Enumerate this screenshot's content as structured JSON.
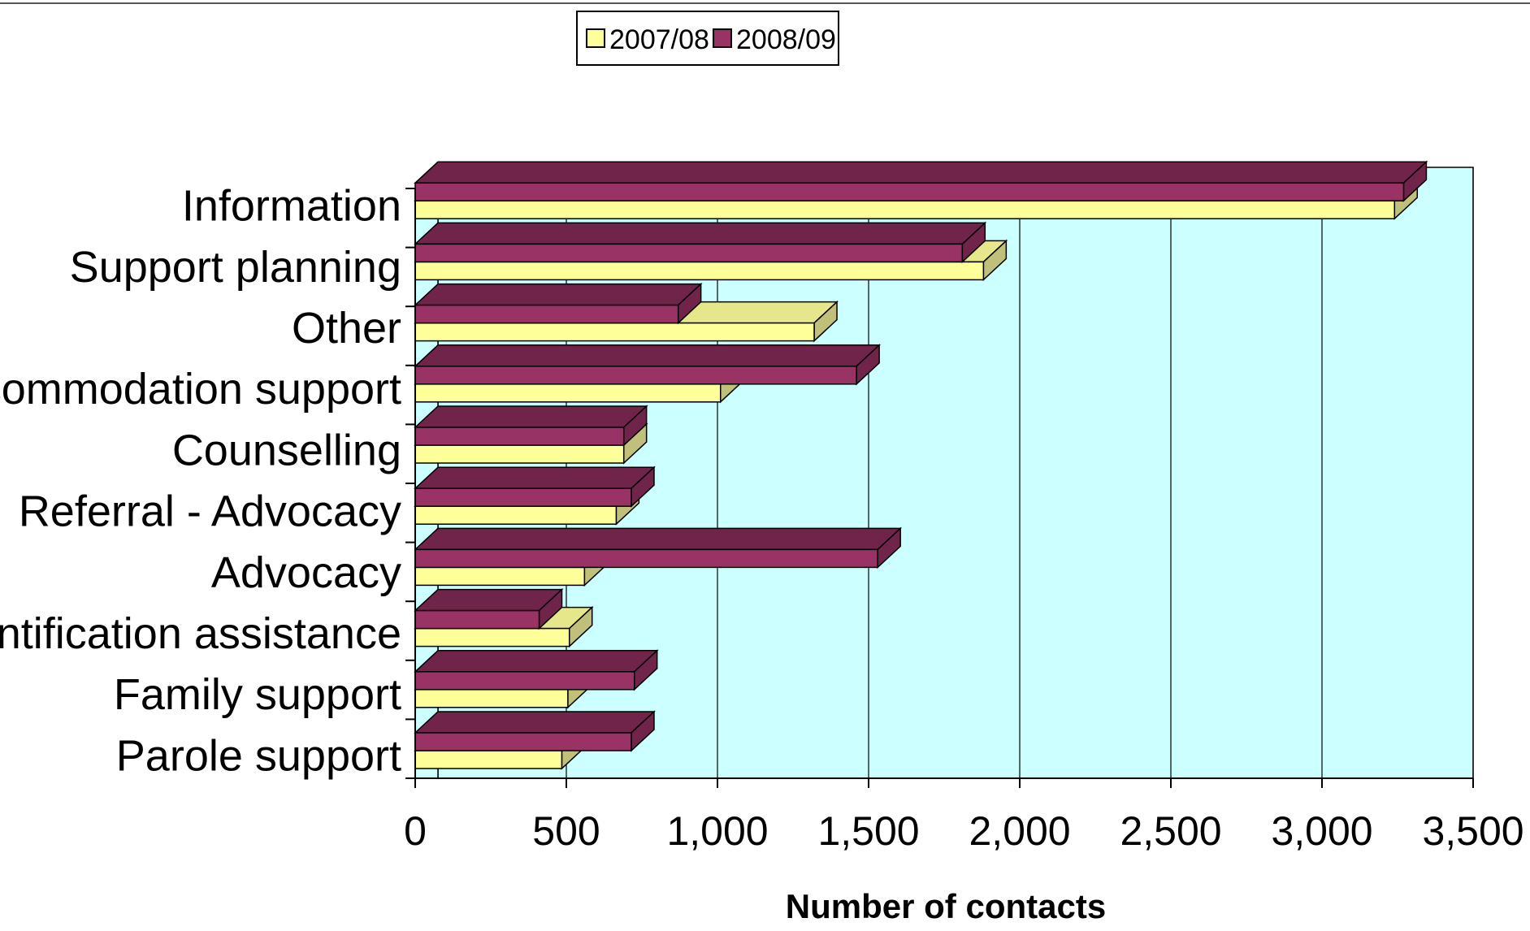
{
  "chart_data": {
    "type": "bar",
    "orientation": "horizontal",
    "categories": [
      "Information",
      "Support planning",
      "Other",
      "Accommodation support",
      "Counselling",
      "Referral - Advocacy",
      "Advocacy",
      "Identification assistance",
      "Family support",
      "Parole support"
    ],
    "series": [
      {
        "name": "2007/08",
        "values": [
          3240,
          1880,
          1320,
          1010,
          690,
          665,
          560,
          510,
          505,
          485
        ]
      },
      {
        "name": "2008/09",
        "values": [
          3270,
          1810,
          870,
          1460,
          690,
          715,
          1530,
          410,
          725,
          715
        ]
      }
    ],
    "xlabel": "Number of contacts",
    "xlim": [
      0,
      3500
    ],
    "xticks": [
      "0",
      "500",
      "1,000",
      "1,500",
      "2,000",
      "2,500",
      "3,000",
      "3,500"
    ],
    "grid": true,
    "legend_position": "top-center",
    "colors": {
      "series_2007_08": "#ffff99",
      "series_2007_08_side": "#c0c07a",
      "series_2008_09": "#993366",
      "series_2008_09_side": "#70244a",
      "plot_background": "#ccffff"
    }
  }
}
